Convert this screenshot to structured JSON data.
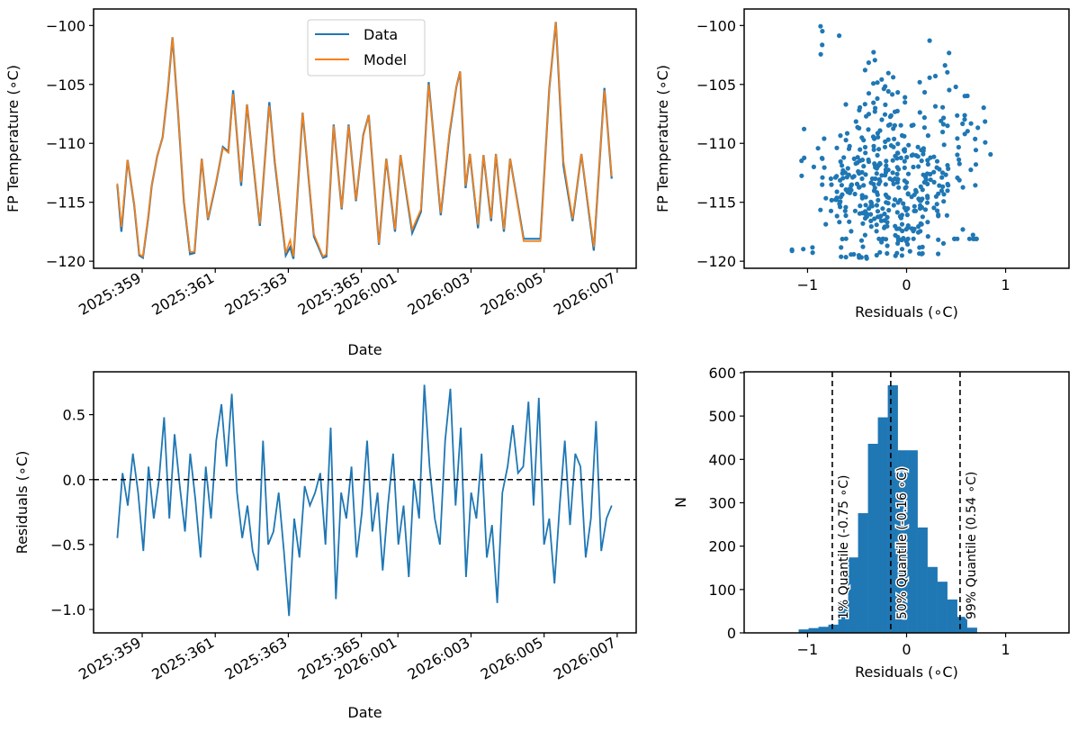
{
  "colors": {
    "data": "#1f77b4",
    "model": "#ff7f0e",
    "axis": "#000000"
  },
  "chart_data": [
    {
      "id": "temperature",
      "type": "line",
      "xlabel": "Date",
      "ylabel": "FP Temperature (∘C)",
      "xlim": [
        -1.33,
        13.52
      ],
      "ylim": [
        -120.6,
        -98.6
      ],
      "x_units": "days since 2025:359",
      "xticks": [
        0,
        2,
        4,
        6,
        7,
        9,
        11,
        13
      ],
      "xtick_labels": [
        "2025:359",
        "2025:361",
        "2025:363",
        "2025:365",
        "2026:001",
        "2026:003",
        "2026:005",
        "2026:007"
      ],
      "yticks": [
        -100,
        -105,
        -110,
        -115,
        -120
      ],
      "ytick_labels": [
        "−100",
        "−105",
        "−110",
        "−115",
        "−120"
      ],
      "legend": {
        "position": "top-center",
        "entries": [
          "Data",
          "Model"
        ]
      },
      "x": [
        -0.68,
        -0.57,
        -0.4,
        -0.22,
        -0.08,
        0.02,
        0.17,
        0.26,
        0.41,
        0.56,
        0.7,
        0.83,
        0.98,
        1.14,
        1.31,
        1.43,
        1.63,
        1.8,
        2.02,
        2.21,
        2.36,
        2.49,
        2.71,
        2.87,
        3.22,
        3.48,
        3.63,
        3.93,
        4.05,
        4.14,
        4.39,
        4.7,
        4.95,
        5.04,
        5.24,
        5.46,
        5.65,
        5.85,
        6.05,
        6.2,
        6.48,
        6.68,
        6.92,
        7.07,
        7.39,
        7.63,
        7.84,
        8.17,
        8.41,
        8.6,
        8.7,
        8.85,
        8.97,
        9.19,
        9.34,
        9.55,
        9.68,
        9.9,
        10.07,
        10.44,
        10.9,
        11.14,
        11.32,
        11.53,
        11.78,
        12.02,
        12.36,
        12.65,
        12.85
      ],
      "series": [
        {
          "name": "Data",
          "values": [
            -113.5,
            -117.5,
            -111.4,
            -115.2,
            -119.5,
            -119.7,
            -116.2,
            -113.6,
            -111.1,
            -109.5,
            -105.6,
            -101.0,
            -107.3,
            -114.9,
            -119.4,
            -119.3,
            -111.3,
            -116.5,
            -113.4,
            -110.3,
            -110.7,
            -105.5,
            -113.6,
            -106.7,
            -117.0,
            -106.5,
            -111.6,
            -119.5,
            -118.8,
            -119.8,
            -107.4,
            -117.9,
            -119.7,
            -119.6,
            -108.4,
            -115.6,
            -108.4,
            -114.9,
            -109.3,
            -107.6,
            -118.6,
            -111.3,
            -117.5,
            -111.0,
            -117.6,
            -115.8,
            -104.8,
            -116.1,
            -109.2,
            -105.2,
            -103.9,
            -113.8,
            -110.9,
            -117.2,
            -111.0,
            -116.6,
            -110.9,
            -117.5,
            -111.3,
            -118.1,
            -118.1,
            -105.4,
            -99.7,
            -111.9,
            -116.6,
            -110.9,
            -119.1,
            -105.3,
            -113.0
          ]
        },
        {
          "name": "Model",
          "values": [
            -113.4,
            -117.1,
            -111.4,
            -115.1,
            -119.4,
            -119.6,
            -116.1,
            -113.6,
            -111.1,
            -109.5,
            -105.5,
            -101.0,
            -107.2,
            -114.8,
            -119.2,
            -119.2,
            -111.3,
            -116.4,
            -113.3,
            -110.4,
            -110.8,
            -105.8,
            -113.3,
            -106.7,
            -116.8,
            -106.8,
            -111.4,
            -119.3,
            -118.2,
            -119.6,
            -107.4,
            -117.7,
            -119.6,
            -119.4,
            -108.5,
            -115.5,
            -108.5,
            -114.8,
            -109.4,
            -107.6,
            -118.5,
            -111.3,
            -117.3,
            -111.0,
            -117.3,
            -115.6,
            -105.0,
            -115.9,
            -109.0,
            -105.2,
            -103.9,
            -113.6,
            -110.9,
            -116.9,
            -111.0,
            -116.4,
            -110.9,
            -117.3,
            -111.3,
            -118.3,
            -118.3,
            -105.4,
            -99.7,
            -111.5,
            -116.4,
            -110.9,
            -118.8,
            -105.5,
            -112.8
          ]
        }
      ]
    },
    {
      "id": "scatter",
      "type": "scatter",
      "xlabel": "Residuals (∘C)",
      "ylabel": "FP Temperature (∘C)",
      "xlim": [
        -1.64,
        1.64
      ],
      "ylim": [
        -120.6,
        -98.6
      ],
      "xticks": [
        -1,
        0,
        1
      ],
      "xtick_labels": [
        "−1",
        "0",
        "1"
      ],
      "yticks": [
        -100,
        -105,
        -110,
        -115,
        -120
      ],
      "ytick_labels": [
        "−100",
        "−105",
        "−110",
        "−115",
        "−120"
      ],
      "points_from": "residuals vs Data temperature at same times"
    },
    {
      "id": "residuals",
      "type": "line",
      "xlabel": "Date",
      "ylabel": "Residuals (∘C)",
      "xlim": [
        -1.33,
        13.52
      ],
      "ylim": [
        -1.18,
        0.83
      ],
      "xticks": [
        0,
        2,
        4,
        6,
        7,
        9,
        11,
        13
      ],
      "xtick_labels": [
        "2025:359",
        "2025:361",
        "2025:363",
        "2025:365",
        "2026:001",
        "2026:003",
        "2026:005",
        "2026:007"
      ],
      "yticks": [
        0.5,
        0.0,
        -0.5,
        -1.0
      ],
      "ytick_labels": [
        "0.5",
        "0.0",
        "−0.5",
        "−1.0"
      ],
      "hline": 0,
      "x_start": -0.68,
      "x_end": 12.85,
      "values": [
        -0.45,
        0.05,
        -0.2,
        0.2,
        -0.1,
        -0.55,
        0.1,
        -0.3,
        0.0,
        0.48,
        -0.3,
        0.35,
        -0.05,
        -0.4,
        0.2,
        -0.15,
        -0.6,
        0.1,
        -0.3,
        0.3,
        0.58,
        0.1,
        0.66,
        -0.1,
        -0.45,
        -0.2,
        -0.55,
        -0.7,
        0.3,
        -0.5,
        -0.4,
        -0.1,
        -0.55,
        -1.05,
        -0.3,
        -0.6,
        -0.05,
        -0.2,
        -0.1,
        0.05,
        -0.5,
        0.4,
        -0.92,
        -0.1,
        -0.3,
        0.1,
        -0.6,
        -0.25,
        0.3,
        -0.4,
        -0.1,
        -0.7,
        -0.2,
        0.2,
        -0.5,
        -0.2,
        -0.75,
        0.0,
        -0.3,
        0.73,
        0.1,
        -0.3,
        -0.5,
        0.3,
        0.7,
        -0.2,
        0.4,
        -0.75,
        -0.1,
        -0.3,
        0.2,
        -0.6,
        -0.35,
        -0.95,
        -0.1,
        0.1,
        0.42,
        0.05,
        0.1,
        0.6,
        -0.2,
        0.63,
        -0.5,
        -0.3,
        -0.8,
        -0.2,
        0.3,
        -0.35,
        0.2,
        0.1,
        -0.6,
        -0.3,
        0.45,
        -0.55,
        -0.3,
        -0.2
      ]
    },
    {
      "id": "histogram",
      "type": "bar",
      "xlabel": "Residuals (∘C)",
      "ylabel": "N",
      "xlim": [
        -1.64,
        1.64
      ],
      "ylim": [
        0,
        602
      ],
      "xticks": [
        -1,
        0,
        1
      ],
      "xtick_labels": [
        "−1",
        "0",
        "1"
      ],
      "yticks": [
        0,
        100,
        200,
        300,
        400,
        500,
        600
      ],
      "ytick_labels": [
        "0",
        "100",
        "200",
        "300",
        "400",
        "500",
        "600"
      ],
      "bin_start": -1.09,
      "bin_width": 0.1,
      "values": [
        8,
        11,
        14,
        19,
        73,
        174,
        276,
        436,
        497,
        571,
        421,
        421,
        243,
        152,
        118,
        77,
        37,
        12
      ],
      "quantiles": [
        {
          "x": -0.75,
          "label": "1% Quantile (-0.75 ∘C)"
        },
        {
          "x": -0.16,
          "label": "50% Quantile (-0.16 ∘C)"
        },
        {
          "x": 0.54,
          "label": "99% Quantile (0.54 ∘C)"
        }
      ]
    }
  ]
}
